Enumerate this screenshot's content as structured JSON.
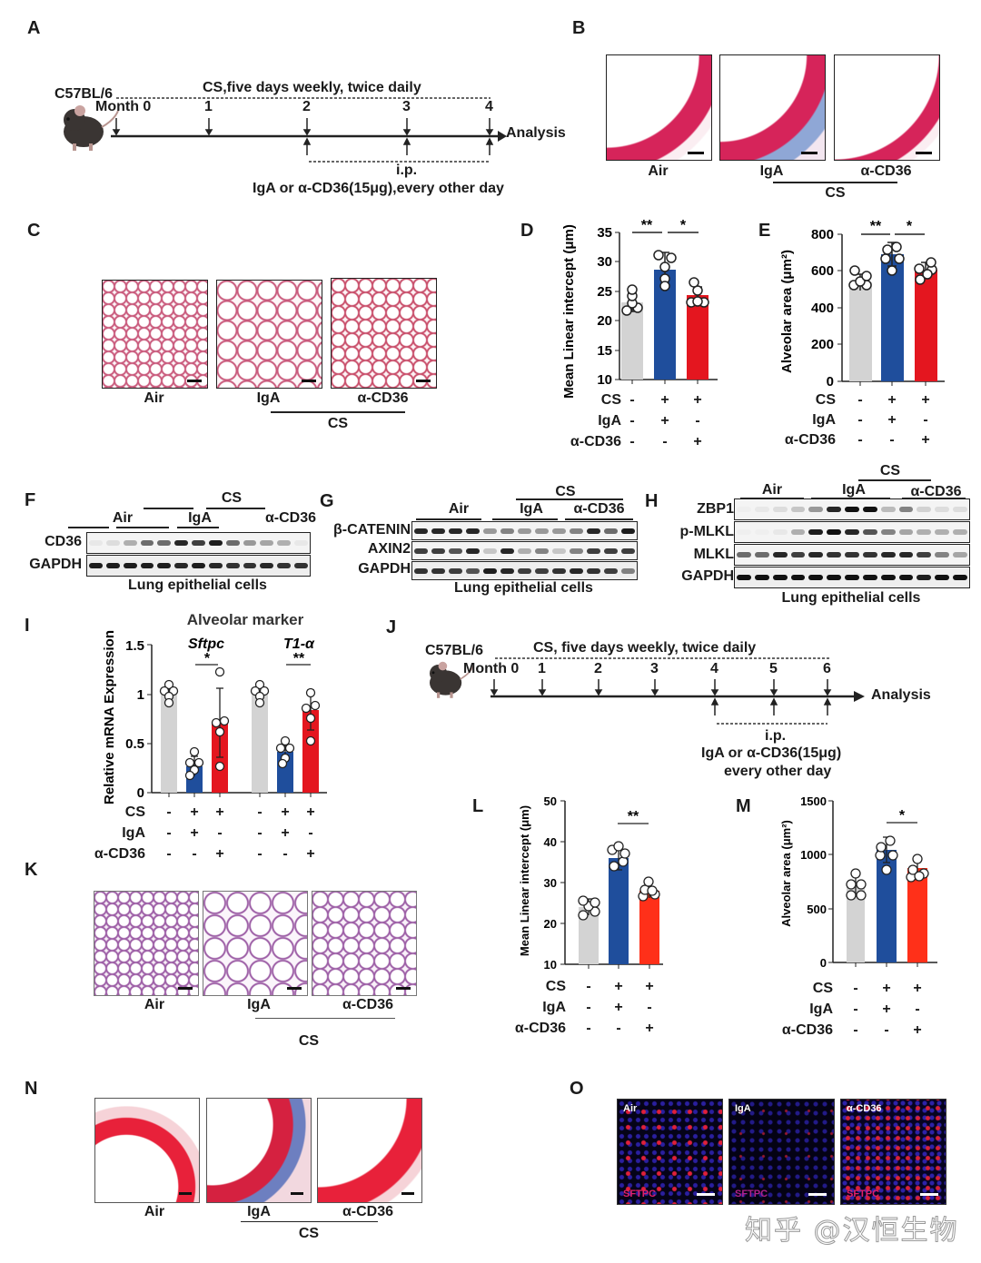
{
  "panels": {
    "A": {
      "label": "A",
      "strain": "C57BL/6",
      "cs_schedule": "CS,five days weekly, twice daily",
      "months": [
        "Month 0",
        "1",
        "2",
        "3",
        "4"
      ],
      "end_label": "Analysis",
      "ip_label": "i.p.",
      "treatment": "IgA or α-CD36(15μg),every other day"
    },
    "B": {
      "label": "B",
      "captions": [
        "Air",
        "IgA",
        "α-CD36"
      ],
      "group": "CS"
    },
    "C": {
      "label": "C",
      "captions": [
        "Air",
        "IgA",
        "α-CD36"
      ],
      "group": "CS"
    },
    "D": {
      "label": "D"
    },
    "E": {
      "label": "E"
    },
    "F": {
      "label": "F",
      "group": "CS",
      "lanes": [
        "Air",
        "IgA",
        "α-CD36"
      ],
      "rows": [
        "CD36",
        "GAPDH"
      ],
      "footer": "Lung epithelial cells"
    },
    "G": {
      "label": "G",
      "group": "CS",
      "lanes": [
        "Air",
        "IgA",
        "α-CD36"
      ],
      "rows": [
        "β-CATENIN",
        "AXIN2",
        "GAPDH"
      ],
      "footer": "Lung epithelial cells"
    },
    "H": {
      "label": "H",
      "group": "CS",
      "lanes": [
        "Air",
        "IgA",
        "α-CD36"
      ],
      "rows": [
        "ZBP1",
        "p-MLKL",
        "MLKL",
        "GAPDH"
      ],
      "footer": "Lung epithelial cells"
    },
    "I": {
      "label": "I",
      "title": "Alveolar marker"
    },
    "J": {
      "label": "J",
      "strain": "C57BL/6",
      "cs_schedule": "CS, five days weekly, twice daily",
      "months": [
        "Month 0",
        "1",
        "2",
        "3",
        "4",
        "5",
        "6"
      ],
      "end_label": "Analysis",
      "ip_label": "i.p.",
      "treatment_line1": "IgA or α-CD36(15μg)",
      "treatment_line2": "every other day"
    },
    "K": {
      "label": "K",
      "captions": [
        "Air",
        "IgA",
        "α-CD36"
      ],
      "group": "CS"
    },
    "L": {
      "label": "L"
    },
    "M": {
      "label": "M"
    },
    "N": {
      "label": "N",
      "captions": [
        "Air",
        "IgA",
        "α-CD36"
      ],
      "group": "CS"
    },
    "O": {
      "label": "O",
      "captions": [
        "Air",
        "IgA",
        "α-CD36"
      ],
      "stain": "SFTPC"
    }
  },
  "condition_rows": {
    "labels": [
      "CS",
      "IgA",
      "α-CD36"
    ],
    "groups": [
      [
        "-",
        "-",
        "-"
      ],
      [
        "+",
        "+",
        "-"
      ],
      [
        "+",
        "-",
        "+"
      ]
    ]
  },
  "colors": {
    "air": "#d3d3d3",
    "iga": "#1f4e9c",
    "acd36": "#e4161f",
    "acd36_alt": "#ff3019"
  },
  "watermark": "知乎 @汉恒生物",
  "chart_data": [
    {
      "panel": "D",
      "type": "bar",
      "categories": [
        "Air",
        "CS+IgA",
        "CS+α-CD36"
      ],
      "values": [
        23.3,
        28.8,
        24.5
      ],
      "error": [
        1.6,
        2.9,
        1.4
      ],
      "points": [
        [
          21.8,
          22.3,
          23.0,
          24.6,
          25.7
        ],
        [
          25.0,
          26.2,
          28.2,
          31.3,
          31.9
        ],
        [
          23.1,
          23.2,
          23.3,
          25.2,
          26.5
        ]
      ],
      "ylabel": "Mean Linear intercept (μm)",
      "ylim": [
        10,
        35
      ],
      "yticks": [
        10,
        15,
        20,
        25,
        30,
        35
      ],
      "significance": [
        {
          "pair": [
            0,
            1
          ],
          "label": "**"
        },
        {
          "pair": [
            1,
            2
          ],
          "label": "*"
        }
      ]
    },
    {
      "panel": "E",
      "type": "bar",
      "categories": [
        "Air",
        "CS+IgA",
        "CS+α-CD36"
      ],
      "values": [
        540,
        690,
        608
      ],
      "error": [
        45,
        65,
        40
      ],
      "points": [
        [
          520,
          525,
          540,
          560,
          600
        ],
        [
          605,
          660,
          700,
          735,
          760
        ],
        [
          555,
          610,
          625,
          640,
          650
        ]
      ],
      "ylabel": "Alveolar area (μm²)",
      "ylim": [
        0,
        800
      ],
      "yticks": [
        0,
        200,
        400,
        600,
        800
      ],
      "significance": [
        {
          "pair": [
            0,
            1
          ],
          "label": "**"
        },
        {
          "pair": [
            1,
            2
          ],
          "label": "*"
        }
      ]
    },
    {
      "panel": "I",
      "type": "bar",
      "title": "Alveolar marker",
      "groups": [
        "Sftpc",
        "T1-α"
      ],
      "categories": [
        "Air",
        "CS+IgA",
        "CS+α-CD36",
        "Air",
        "CS+IgA",
        "CS+α-CD36"
      ],
      "values": [
        1.0,
        0.27,
        0.71,
        1.0,
        0.42,
        0.84
      ],
      "error": [
        0.08,
        0.1,
        0.35,
        0.07,
        0.1,
        0.2
      ],
      "points": [
        [
          0.93,
          0.97,
          1.0,
          1.05,
          1.1
        ],
        [
          0.17,
          0.2,
          0.27,
          0.3,
          0.42
        ],
        [
          0.27,
          0.62,
          0.71,
          0.73,
          1.23
        ],
        [
          0.92,
          0.96,
          1.0,
          1.05,
          1.1
        ],
        [
          0.3,
          0.38,
          0.45,
          0.47,
          0.52
        ],
        [
          0.53,
          0.79,
          0.87,
          0.9,
          1.05
        ]
      ],
      "ylabel": "Relative mRNA Expression",
      "ylim": [
        0,
        1.5
      ],
      "yticks": [
        0.0,
        0.5,
        1.0,
        1.5
      ],
      "significance": [
        {
          "pair": [
            1,
            2
          ],
          "label": "*"
        },
        {
          "pair": [
            4,
            5
          ],
          "label": "**"
        }
      ]
    },
    {
      "panel": "L",
      "type": "bar",
      "categories": [
        "Air",
        "CS+IgA",
        "CS+α-CD36"
      ],
      "values": [
        24.5,
        36.0,
        28.0
      ],
      "error": [
        2.0,
        2.8,
        1.8
      ],
      "points": [
        [
          22.3,
          24.0,
          24.7,
          25.8,
          26.3
        ],
        [
          32.0,
          34.0,
          37.8,
          38.6,
          39.4
        ],
        [
          26.1,
          26.6,
          26.8,
          28.0,
          30.4
        ]
      ],
      "ylabel": "Mean Linear intercept (μm)",
      "ylim": [
        10,
        50
      ],
      "yticks": [
        10,
        20,
        30,
        40,
        50
      ],
      "significance": [
        {
          "pair": [
            1,
            2
          ],
          "label": "**"
        }
      ]
    },
    {
      "panel": "M",
      "type": "bar",
      "categories": [
        "Air",
        "CS+IgA",
        "CS+α-CD36"
      ],
      "values": [
        725,
        1040,
        870
      ],
      "error": [
        95,
        115,
        90
      ],
      "points": [
        [
          620,
          660,
          710,
          760,
          860
        ],
        [
          860,
          990,
          1060,
          1080,
          1150
        ],
        [
          760,
          810,
          830,
          890,
          980
        ]
      ],
      "ylabel": "Alveolar area (μm²)",
      "ylim": [
        0,
        1500
      ],
      "yticks": [
        0,
        500,
        1000,
        1500
      ],
      "significance": [
        {
          "pair": [
            1,
            2
          ],
          "label": "*"
        }
      ]
    }
  ]
}
